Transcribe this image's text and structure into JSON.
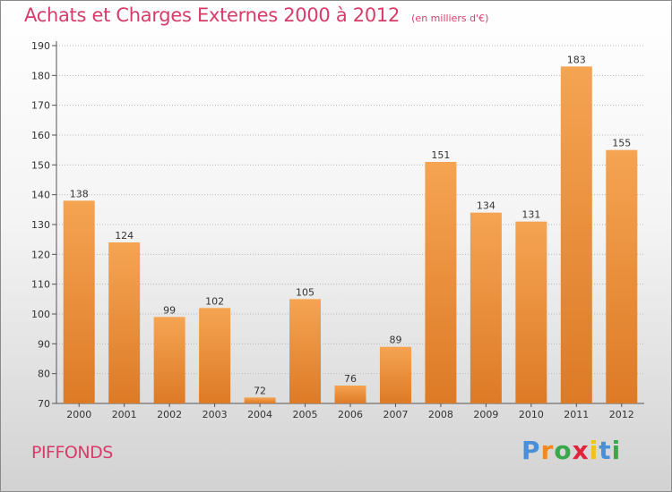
{
  "header": {
    "title": "Achats et Charges Externes 2000 à 2012",
    "subtitle": "(en milliers d'€)"
  },
  "footer": {
    "city": "PIFFONDS",
    "logo_letters": [
      "P",
      "r",
      "o",
      "x",
      "i",
      "t",
      "i"
    ],
    "logo_colors": [
      "#4a90d9",
      "#f08a1c",
      "#3aa84a",
      "#e0243c",
      "#f2c21a",
      "#4a90d9",
      "#3aa84a"
    ]
  },
  "colors": {
    "bar_top": "#f5a452",
    "bar_bottom": "#dd7a26",
    "title": "#d63c6a"
  },
  "chart_data": {
    "type": "bar",
    "categories": [
      "2000",
      "2001",
      "2002",
      "2003",
      "2004",
      "2005",
      "2006",
      "2007",
      "2008",
      "2009",
      "2010",
      "2011",
      "2012"
    ],
    "values": [
      138,
      124,
      99,
      102,
      72,
      105,
      76,
      89,
      151,
      134,
      131,
      183,
      155
    ],
    "data_labels": [
      "138",
      "124",
      "99",
      "102",
      "72",
      "105",
      "76",
      "89",
      "151",
      "134",
      "131",
      "183",
      "155"
    ],
    "ylim": [
      70,
      190
    ],
    "yticks": [
      70,
      80,
      90,
      100,
      110,
      120,
      130,
      140,
      150,
      160,
      170,
      180,
      190
    ],
    "ytick_labels": [
      "70",
      "80",
      "90",
      "100",
      "110",
      "120",
      "130",
      "140",
      "150",
      "160",
      "170",
      "180",
      "190"
    ],
    "grid": "horizontal dotted",
    "legend": "none"
  }
}
